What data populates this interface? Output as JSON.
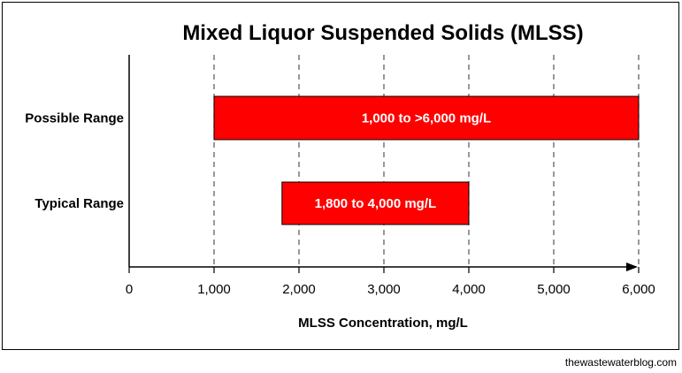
{
  "chart_data": {
    "type": "bar",
    "orientation": "horizontal",
    "title": "Mixed Liquor Suspended Solids (MLSS)",
    "xlabel": "MLSS Concentration, mg/L",
    "ylabel": "",
    "xlim": [
      0,
      6000
    ],
    "xticks": [
      0,
      1000,
      2000,
      3000,
      4000,
      5000,
      6000
    ],
    "xtick_labels": [
      "0",
      "1,000",
      "2,000",
      "3,000",
      "4,000",
      "5,000",
      "6,000"
    ],
    "grid": "vertical dashed",
    "bars": [
      {
        "category": "Possible Range",
        "start": 1000,
        "end": 6000,
        "label": "1,000 to >6,000 mg/L",
        "color": "#ff0000"
      },
      {
        "category": "Typical Range",
        "start": 1800,
        "end": 4000,
        "label": "1,800 to 4,000 mg/L",
        "color": "#ff0000"
      }
    ]
  },
  "credit": "thewastewaterblog.com"
}
